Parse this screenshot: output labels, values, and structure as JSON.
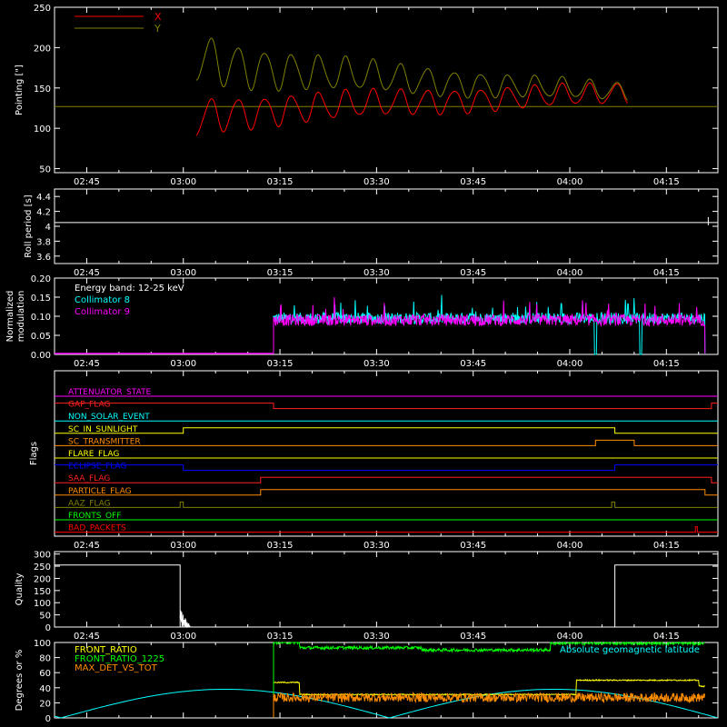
{
  "chart_data": [
    {
      "type": "line",
      "ylabel": "Pointing [\"]",
      "yticks": [
        50,
        100,
        150,
        200,
        250
      ],
      "ylim": [
        45,
        250
      ],
      "xticks": [
        "02:45",
        "03:00",
        "03:15",
        "03:30",
        "03:45",
        "04:00",
        "04:15"
      ],
      "xlim_minutes": [
        -5,
        98
      ],
      "legend_position": "top-left",
      "series": [
        {
          "name": "X",
          "color": "#ff0000",
          "start_min": 17,
          "end_min": 84,
          "mean_start": 112,
          "mean_end": 143,
          "amp_start": 28,
          "amp_end": 15,
          "oscillation_period_min": 1.4
        },
        {
          "name": "Y",
          "color": "#808000",
          "start_min": 17,
          "end_min": 84,
          "mean_start": 190,
          "mean_end": 145,
          "amp_start": 40,
          "amp_end": 13,
          "oscillation_period_min": 1.4
        }
      ],
      "baseline": 127
    },
    {
      "type": "line",
      "ylabel": "Roll period [s]",
      "yticks": [
        3.6,
        3.8,
        4.0,
        4.2,
        4.4
      ],
      "ylim": [
        3.5,
        4.5
      ],
      "xticks": [
        "02:45",
        "03:00",
        "03:15",
        "03:30",
        "03:45",
        "04:00",
        "04:15"
      ],
      "value": 4.05
    },
    {
      "type": "line",
      "ylabel": "Normalized modulation",
      "yticks": [
        "0.00",
        "0.05",
        "0.10",
        "0.15",
        "0.20"
      ],
      "ylim": [
        0,
        0.2
      ],
      "xticks": [
        "02:45",
        "03:00",
        "03:15",
        "03:30",
        "03:45",
        "04:00",
        "04:15"
      ],
      "annotations": [
        "Energy band: 12-25 keV"
      ],
      "series": [
        {
          "name": "Collimator 8",
          "color": "#00ffff",
          "start_min": 29,
          "end_min": 96,
          "base": 0.095
        },
        {
          "name": "Collimator 9",
          "color": "#ff00ff",
          "start_min": 29,
          "end_min": 96,
          "base": 0.09
        }
      ]
    },
    {
      "type": "line",
      "ylabel": "Flags",
      "xticks": [
        "02:45",
        "03:00",
        "03:15",
        "03:30",
        "03:45",
        "04:00",
        "04:15"
      ],
      "flags": [
        {
          "name": "ATTENUATOR_STATE",
          "color": "#ff00ff",
          "steps": [
            [
              -5,
              0
            ],
            [
              98,
              0
            ]
          ]
        },
        {
          "name": "GAP_FLAG",
          "color": "#ff2020",
          "steps": [
            [
              -5,
              1
            ],
            [
              29,
              0
            ],
            [
              97,
              1
            ]
          ]
        },
        {
          "name": "NON_SOLAR_EVENT",
          "color": "#00ffff",
          "steps": [
            [
              -5,
              0
            ]
          ]
        },
        {
          "name": "SC_IN_SUNLIGHT",
          "color": "#ffff00",
          "steps": [
            [
              -5,
              0
            ],
            [
              15,
              1
            ],
            [
              82,
              0
            ]
          ]
        },
        {
          "name": "SC_TRANSMITTER",
          "color": "#ff8c00",
          "steps": [
            [
              -5,
              0
            ],
            [
              79,
              1
            ],
            [
              85,
              0
            ]
          ]
        },
        {
          "name": "FLARE_FLAG",
          "color": "#ffff00",
          "steps": [
            [
              -5,
              0
            ]
          ]
        },
        {
          "name": "ECLIPSE_FLAG",
          "color": "#0000ff",
          "steps": [
            [
              -5,
              1
            ],
            [
              15,
              0
            ],
            [
              82,
              1
            ]
          ]
        },
        {
          "name": "SAA_FLAG",
          "color": "#ff2020",
          "steps": [
            [
              -5,
              0
            ],
            [
              27,
              1
            ],
            [
              97,
              0
            ]
          ]
        },
        {
          "name": "PARTICLE_FLAG",
          "color": "#ff8c00",
          "steps": [
            [
              -5,
              0
            ],
            [
              27,
              1
            ],
            [
              96,
              0
            ]
          ]
        },
        {
          "name": "AAZ_FLAG",
          "color": "#808000",
          "steps": [
            [
              -5,
              0
            ],
            [
              14.5,
              1
            ],
            [
              15,
              0
            ],
            [
              81.5,
              1
            ],
            [
              82,
              0
            ]
          ]
        },
        {
          "name": "FRONTS_OFF",
          "color": "#00ff00",
          "steps": [
            [
              -5,
              0
            ]
          ]
        },
        {
          "name": "BAD_PACKETS",
          "color": "#ff0000",
          "steps": [
            [
              -5,
              0
            ],
            [
              94.5,
              1
            ],
            [
              94.8,
              0
            ]
          ]
        }
      ]
    },
    {
      "type": "line",
      "ylabel": "Quality",
      "yticks": [
        0,
        50,
        100,
        150,
        200,
        250,
        300
      ],
      "ylim": [
        0,
        310
      ],
      "xticks": [
        "02:45",
        "03:00",
        "03:15",
        "03:30",
        "03:45",
        "04:00",
        "04:15"
      ],
      "segments": [
        {
          "start_min": -5,
          "end_min": 14.5,
          "value": 255
        },
        {
          "start_min": 82,
          "end_min": 98,
          "value": 255
        }
      ],
      "low_value": 0
    },
    {
      "type": "line",
      "ylabel": "Degrees or %",
      "yticks": [
        0,
        20,
        40,
        60,
        80,
        100
      ],
      "ylim": [
        0,
        100
      ],
      "xticks": [
        "02:45",
        "03:00",
        "03:15",
        "03:30",
        "03:45",
        "04:00",
        "04:15"
      ],
      "series": [
        {
          "name": "FRONT_RATIO",
          "color": "#ffff00",
          "start_min": 29,
          "end_min": 96,
          "levels": [
            [
              29,
              47
            ],
            [
              33,
              31
            ],
            [
              76,
              50
            ],
            [
              95,
              42
            ]
          ]
        },
        {
          "name": "FRONT_RATIO_1225",
          "color": "#00ff00",
          "start_min": 29,
          "end_min": 96,
          "levels": [
            [
              29,
              100
            ],
            [
              33,
              93
            ],
            [
              52,
              90
            ],
            [
              72,
              99
            ]
          ]
        },
        {
          "name": "MAX_DET_VS_TOT",
          "color": "#ff8c00",
          "start_min": 29,
          "end_min": 96,
          "levels": [
            [
              29,
              27
            ]
          ]
        },
        {
          "name": "Absolute geomagnetic latitude",
          "color": "#00ffff",
          "function": "abs_lat",
          "max": 38,
          "zero_crossings_min": [
            -4,
            47,
            98
          ]
        }
      ]
    }
  ]
}
